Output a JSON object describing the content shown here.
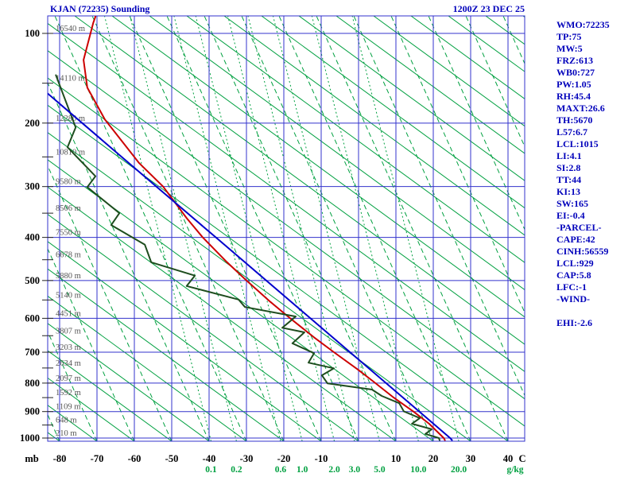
{
  "header": {
    "title": "KJAN (72235) Sounding",
    "datetime": "1200Z 23 DEC 25"
  },
  "stats_panel": {
    "lines": [
      "WMO:72235",
      "TP:75",
      "MW:5",
      "FRZ:613",
      "WB0:727",
      "PW:1.05",
      "RH:45.4",
      "MAXT:26.6",
      "TH:5670",
      "L57:6.7",
      "LCL:1015",
      "LI:4.1",
      "SI:2.8",
      "TT:44",
      "KI:13",
      "SW:165",
      "EI:-0.4",
      "-PARCEL-",
      "CAPE:42",
      "CINH:56559",
      "LCL:929",
      "CAP:5.8",
      "LFC:-1",
      "-WIND-",
      "",
      "EHI:-2.6"
    ]
  },
  "chart_data": {
    "type": "line",
    "diagram_style": "stuve_sounding",
    "title": "KJAN (72235) Sounding",
    "subtitle": "1200Z 23 DEC 25",
    "grid": "on",
    "x_axis": {
      "label": "C",
      "ticks": [
        -80,
        -70,
        -60,
        -50,
        -40,
        -30,
        -20,
        -10,
        10,
        20,
        30,
        40
      ],
      "range": [
        -83,
        45
      ]
    },
    "y_axis": {
      "label": "mb",
      "ticks": [
        100,
        200,
        300,
        400,
        500,
        600,
        700,
        800,
        900,
        1000
      ],
      "range": [
        86,
        1012
      ],
      "scale": "pressure_power_0.35_log_like"
    },
    "mixing_ratio_axis": {
      "label": "g/kg",
      "ticks": [
        "0.1",
        "0.2",
        "0.6",
        "1.0",
        "2.0",
        "3.0",
        "5.0",
        "10.0",
        "20.0"
      ]
    },
    "height_labels": {
      "unit": "m",
      "levels_mb": [
        100,
        150,
        200,
        250,
        300,
        350,
        400,
        450,
        500,
        550,
        600,
        650,
        700,
        750,
        800,
        850,
        900,
        950,
        1000
      ],
      "labels": [
        "16540 m",
        "14110 m",
        "12280 m",
        "10810 m",
        "9580 m",
        "8506 m",
        "7550 m",
        "6678 m",
        "5880 m",
        "5140 m",
        "4451 m",
        "3807 m",
        "3203 m",
        "2634 m",
        "2097 m",
        "1592 m",
        "1109 m",
        "648 m",
        "210 m"
      ]
    },
    "series": [
      {
        "name": "temperature",
        "color": "#cc0000",
        "points": [
          [
            86,
            -70.4
          ],
          [
            91,
            -71
          ],
          [
            125,
            -73.6
          ],
          [
            155,
            -72.6
          ],
          [
            195,
            -67.9
          ],
          [
            260,
            -58.7
          ],
          [
            300,
            -52.3
          ],
          [
            360,
            -46
          ],
          [
            400,
            -41.7
          ],
          [
            455,
            -35.3
          ],
          [
            500,
            -30
          ],
          [
            555,
            -23.6
          ],
          [
            600,
            -18.3
          ],
          [
            655,
            -11.9
          ],
          [
            700,
            -6.6
          ],
          [
            755,
            -0.2
          ],
          [
            795,
            4
          ],
          [
            850,
            9.4
          ],
          [
            900,
            14.7
          ],
          [
            945,
            18.9
          ],
          [
            1000,
            22.8
          ],
          [
            1008,
            23.1
          ]
        ]
      },
      {
        "name": "dewpoint",
        "color": "#1e4d1e",
        "points": [
          [
            141,
            -81
          ],
          [
            206,
            -75.7
          ],
          [
            235,
            -77.9
          ],
          [
            282,
            -70.4
          ],
          [
            301,
            -72.6
          ],
          [
            350,
            -64
          ],
          [
            374,
            -66.2
          ],
          [
            416,
            -57.2
          ],
          [
            456,
            -55.5
          ],
          [
            488,
            -43.8
          ],
          [
            514,
            -46
          ],
          [
            549,
            -32.1
          ],
          [
            569,
            -30.4
          ],
          [
            595,
            -16.8
          ],
          [
            627,
            -20.4
          ],
          [
            640,
            -14.5
          ],
          [
            673,
            -17.7
          ],
          [
            703,
            -11.9
          ],
          [
            733,
            -13.4
          ],
          [
            751,
            -6.6
          ],
          [
            774,
            -9.8
          ],
          [
            801,
            -8.3
          ],
          [
            822,
            3.6
          ],
          [
            844,
            6.2
          ],
          [
            870,
            10.9
          ],
          [
            899,
            12.1
          ],
          [
            924,
            16.4
          ],
          [
            945,
            14.3
          ],
          [
            966,
            19.6
          ],
          [
            984,
            17.9
          ],
          [
            1000,
            21.5
          ],
          [
            1008,
            21.7
          ]
        ]
      },
      {
        "name": "wet-bulb",
        "color": "#0000cc",
        "points": [
          [
            162,
            -83.2
          ],
          [
            253,
            -62.8
          ],
          [
            402,
            -37.9
          ],
          [
            599,
            -13
          ],
          [
            850,
            11.9
          ],
          [
            1000,
            24.5
          ],
          [
            1008,
            25
          ]
        ]
      }
    ],
    "colors": {
      "temperature_red": "#cc0000",
      "dewpoint_green": "#1e4d1e",
      "wetbulb_blue": "#0000cc",
      "grid_blue": "#3333cc",
      "adiabat_green": "#00a040",
      "heading_blue": "#0000bb",
      "axis_black": "#000000",
      "height_gray": "#555555"
    }
  }
}
